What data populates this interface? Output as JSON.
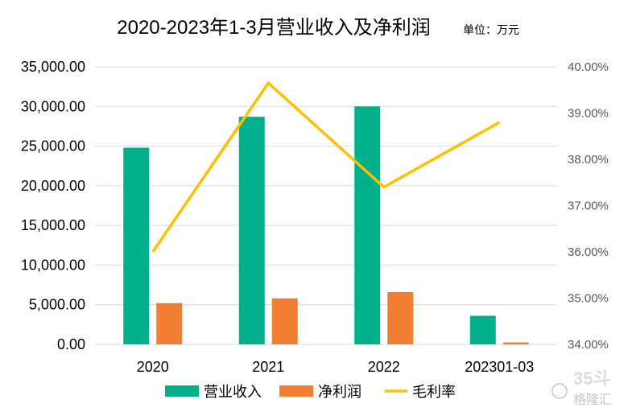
{
  "chart_data": {
    "type": "bar",
    "title": "2020-2023年1-3月营业收入及净利润",
    "unit_label": "单位：万元",
    "categories": [
      "2020",
      "2021",
      "2022",
      "202301-03"
    ],
    "series": [
      {
        "name": "营业收入",
        "type": "bar",
        "axis": "left",
        "color": "#00b08b",
        "values": [
          24800,
          28700,
          30000,
          3600
        ]
      },
      {
        "name": "净利润",
        "type": "bar",
        "axis": "left",
        "color": "#f07f33",
        "values": [
          5200,
          5800,
          6600,
          250
        ]
      },
      {
        "name": "毛利率",
        "type": "line",
        "axis": "right",
        "color": "#ffc000",
        "values": [
          36.0,
          39.65,
          37.4,
          38.8
        ]
      }
    ],
    "y_left": {
      "min": 0,
      "max": 35000,
      "step": 5000,
      "tick_labels": [
        "0.00",
        "5,000.00",
        "10,000.00",
        "15,000.00",
        "20,000.00",
        "25,000.00",
        "30,000.00",
        "35,000.00"
      ]
    },
    "y_right": {
      "min": 34,
      "max": 40,
      "step": 1,
      "tick_labels": [
        "34.00%",
        "35.00%",
        "36.00%",
        "37.00%",
        "38.00%",
        "39.00%",
        "40.00%"
      ]
    },
    "grid": true,
    "legend_position": "bottom"
  },
  "watermark": {
    "text_top": "35斗",
    "text_bottom": "格隆汇"
  }
}
